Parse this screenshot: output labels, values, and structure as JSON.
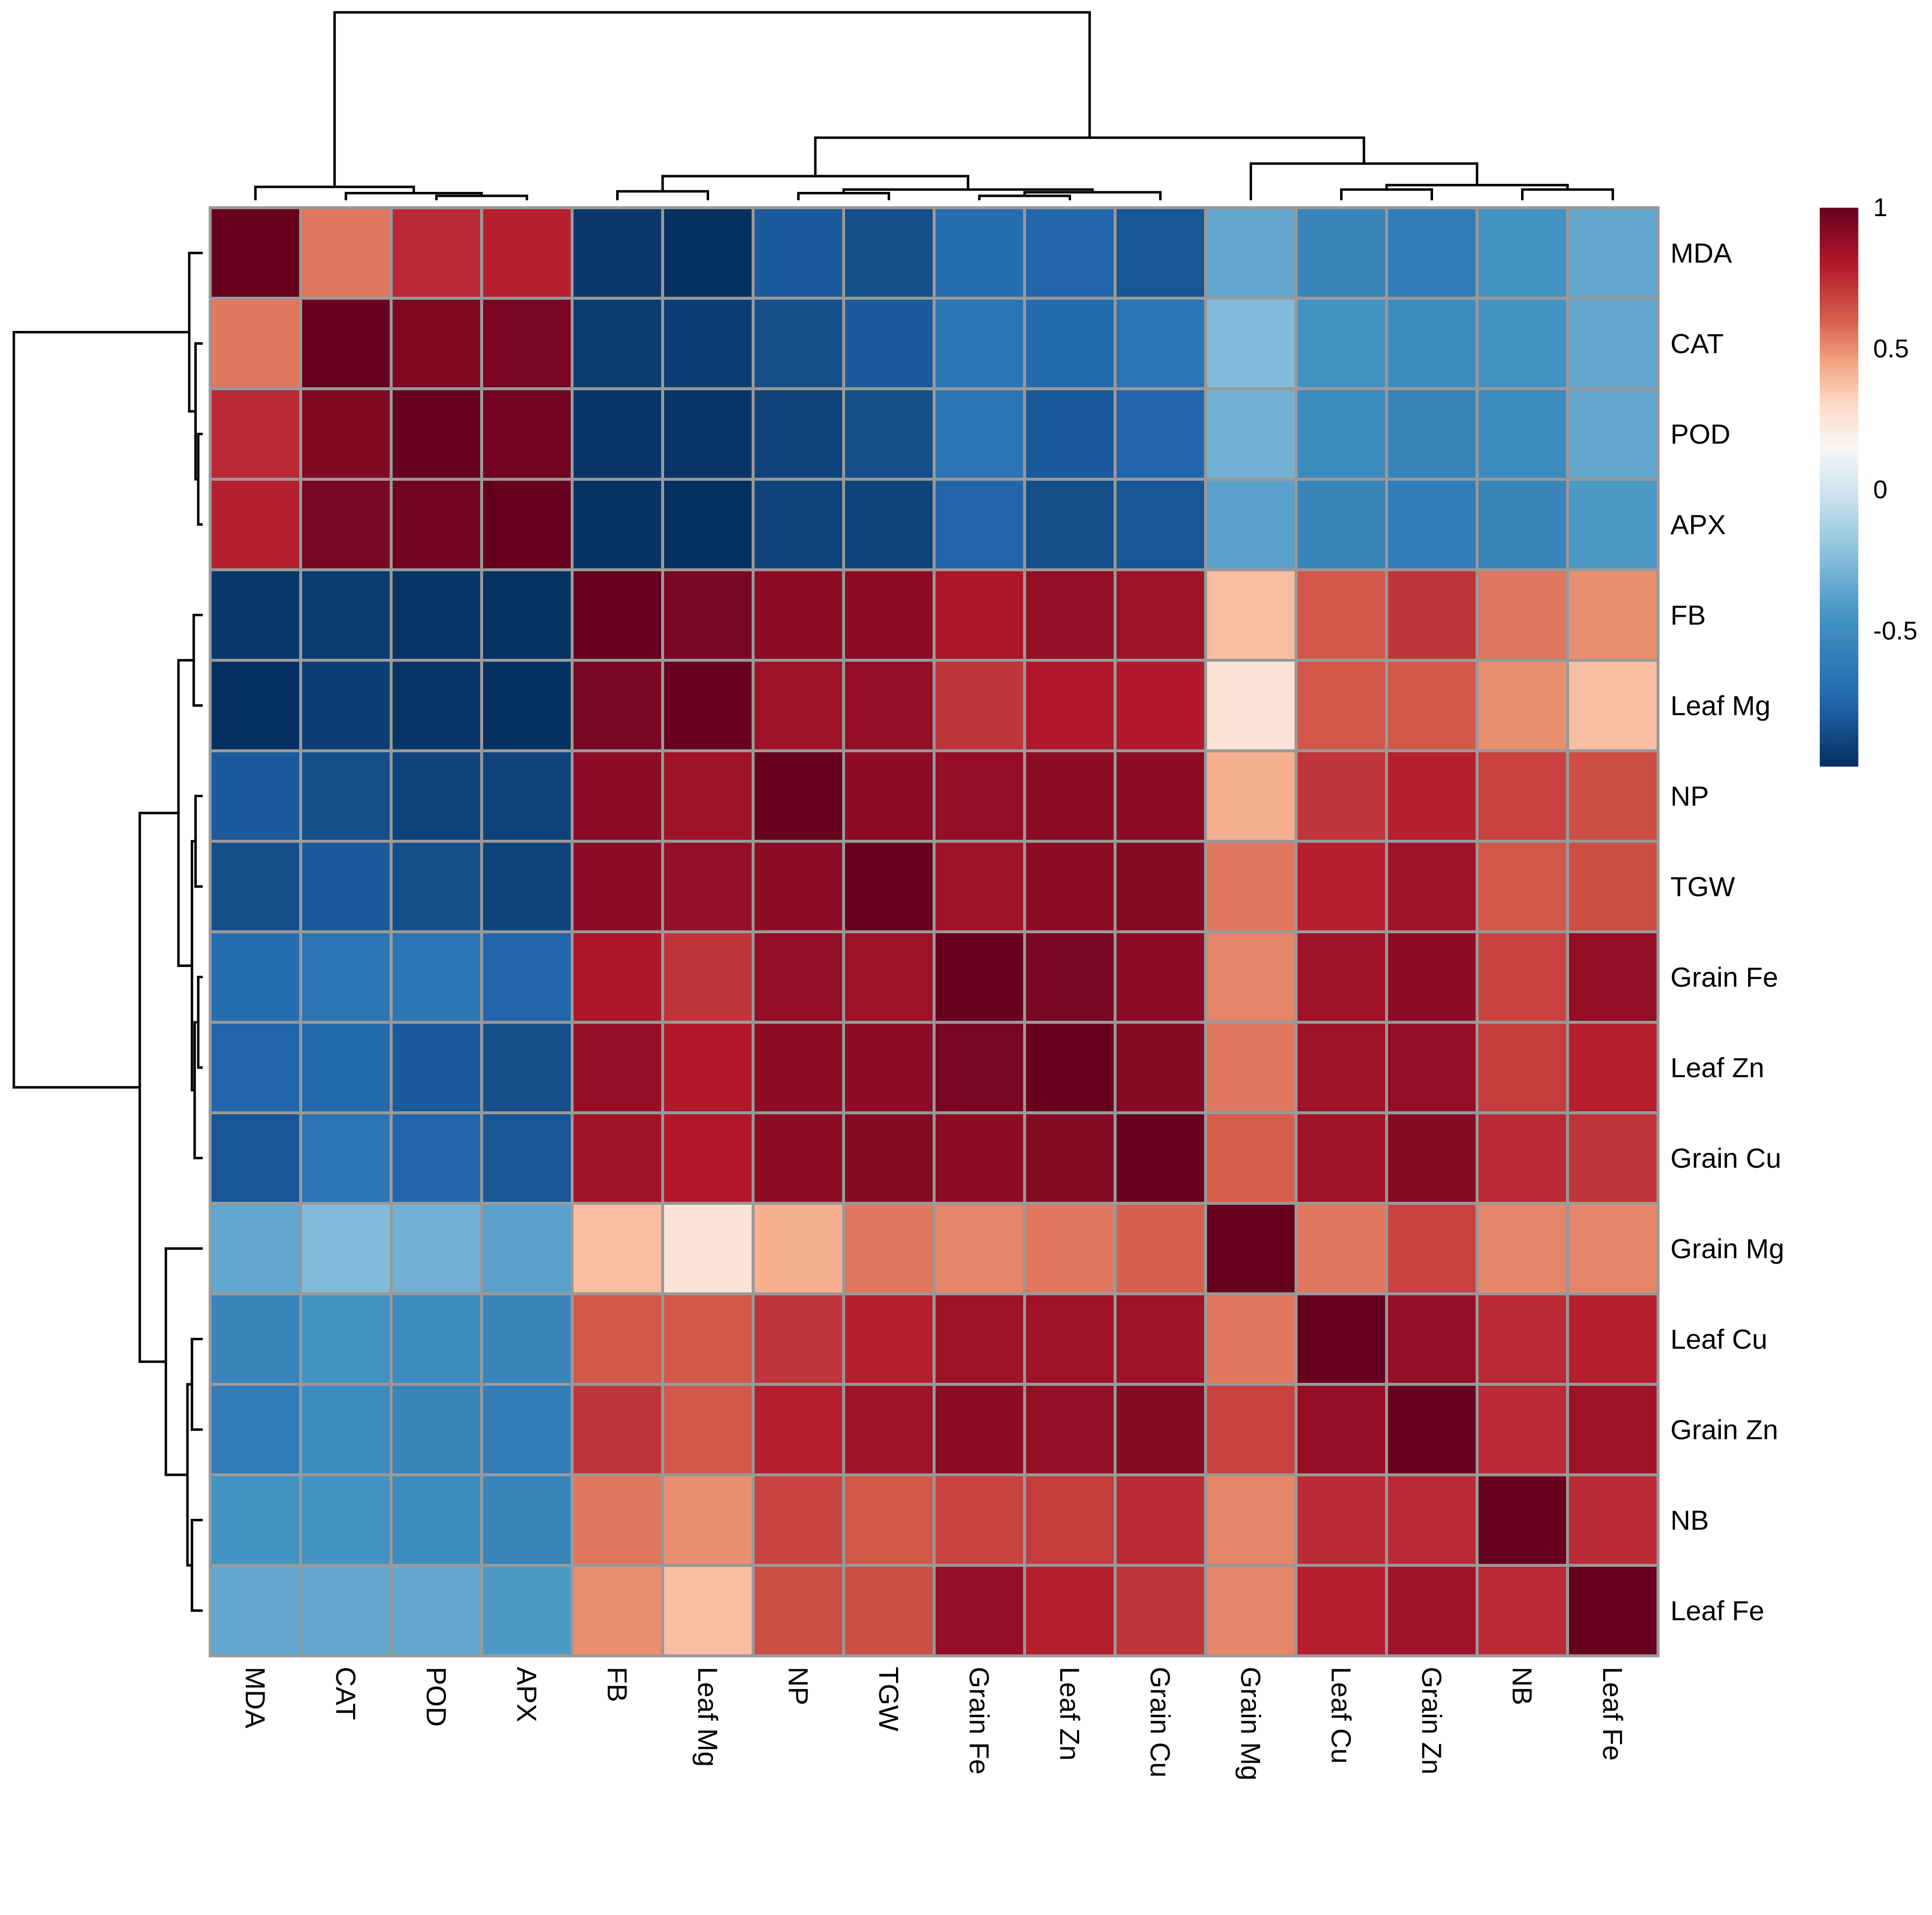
{
  "chart_data": {
    "type": "heatmap",
    "title": "",
    "row_labels": [
      "MDA",
      "CAT",
      "POD",
      "APX",
      "FB",
      "Leaf Mg",
      "NP",
      "TGW",
      "Grain Fe",
      "Leaf Zn",
      "Grain Cu",
      "Grain Mg",
      "Leaf Cu",
      "Grain Zn",
      "NB",
      "Leaf Fe"
    ],
    "col_labels": [
      "MDA",
      "CAT",
      "POD",
      "APX",
      "FB",
      "Leaf Mg",
      "NP",
      "TGW",
      "Grain Fe",
      "Leaf Zn",
      "Grain Cu",
      "Grain Mg",
      "Leaf Cu",
      "Grain Zn",
      "NB",
      "Leaf Fe"
    ],
    "values": [
      [
        1.0,
        0.55,
        0.75,
        0.78,
        -0.95,
        -0.98,
        -0.8,
        -0.85,
        -0.7,
        -0.75,
        -0.82,
        -0.35,
        -0.55,
        -0.6,
        -0.45,
        -0.35
      ],
      [
        0.55,
        1.0,
        0.93,
        0.95,
        -0.93,
        -0.92,
        -0.85,
        -0.8,
        -0.65,
        -0.72,
        -0.65,
        -0.25,
        -0.45,
        -0.5,
        -0.45,
        -0.35
      ],
      [
        0.75,
        0.93,
        1.0,
        0.97,
        -0.96,
        -0.96,
        -0.9,
        -0.85,
        -0.65,
        -0.8,
        -0.75,
        -0.3,
        -0.5,
        -0.55,
        -0.5,
        -0.35
      ],
      [
        0.78,
        0.95,
        0.97,
        1.0,
        -0.97,
        -0.98,
        -0.9,
        -0.9,
        -0.75,
        -0.85,
        -0.82,
        -0.38,
        -0.55,
        -0.6,
        -0.55,
        -0.42
      ],
      [
        -0.95,
        -0.93,
        -0.96,
        -0.97,
        1.0,
        0.95,
        0.9,
        0.9,
        0.82,
        0.88,
        0.85,
        0.38,
        0.62,
        0.72,
        0.55,
        0.5
      ],
      [
        -0.98,
        -0.92,
        -0.96,
        -0.98,
        0.95,
        1.0,
        0.85,
        0.88,
        0.72,
        0.8,
        0.8,
        0.25,
        0.62,
        0.62,
        0.5,
        0.38
      ],
      [
        -0.8,
        -0.85,
        -0.9,
        -0.9,
        0.9,
        0.85,
        1.0,
        0.9,
        0.88,
        0.9,
        0.9,
        0.42,
        0.72,
        0.78,
        0.68,
        0.65
      ],
      [
        -0.85,
        -0.8,
        -0.85,
        -0.9,
        0.9,
        0.88,
        0.9,
        1.0,
        0.85,
        0.9,
        0.92,
        0.55,
        0.78,
        0.85,
        0.62,
        0.65
      ],
      [
        -0.7,
        -0.65,
        -0.65,
        -0.75,
        0.82,
        0.72,
        0.88,
        0.85,
        1.0,
        0.95,
        0.9,
        0.52,
        0.85,
        0.9,
        0.68,
        0.88
      ],
      [
        -0.75,
        -0.72,
        -0.8,
        -0.85,
        0.88,
        0.8,
        0.9,
        0.9,
        0.95,
        1.0,
        0.92,
        0.55,
        0.85,
        0.88,
        0.7,
        0.78
      ],
      [
        -0.82,
        -0.65,
        -0.75,
        -0.82,
        0.85,
        0.8,
        0.9,
        0.92,
        0.9,
        0.92,
        1.0,
        0.6,
        0.85,
        0.92,
        0.75,
        0.72
      ],
      [
        -0.35,
        -0.25,
        -0.3,
        -0.38,
        0.38,
        0.25,
        0.42,
        0.55,
        0.52,
        0.55,
        0.6,
        1.0,
        0.55,
        0.68,
        0.52,
        0.52
      ],
      [
        -0.55,
        -0.45,
        -0.5,
        -0.55,
        0.62,
        0.62,
        0.72,
        0.78,
        0.85,
        0.85,
        0.85,
        0.55,
        1.0,
        0.88,
        0.75,
        0.78
      ],
      [
        -0.6,
        -0.5,
        -0.55,
        -0.6,
        0.72,
        0.62,
        0.78,
        0.85,
        0.9,
        0.88,
        0.92,
        0.68,
        0.88,
        1.0,
        0.75,
        0.85
      ],
      [
        -0.45,
        -0.45,
        -0.5,
        -0.55,
        0.55,
        0.5,
        0.68,
        0.62,
        0.68,
        0.7,
        0.75,
        0.52,
        0.75,
        0.75,
        1.0,
        0.75
      ],
      [
        -0.35,
        -0.35,
        -0.35,
        -0.42,
        0.5,
        0.38,
        0.65,
        0.65,
        0.88,
        0.78,
        0.72,
        0.52,
        0.78,
        0.85,
        0.75,
        1.0
      ]
    ],
    "color_scale": {
      "min": -0.98,
      "max": 1.0,
      "low_color": "#053061",
      "mid_color": "#F7F7F7",
      "high_color": "#67001F",
      "stops": [
        {
          "value": -0.98,
          "color": "#053061"
        },
        {
          "value": -0.75,
          "color": "#2166AC"
        },
        {
          "value": -0.45,
          "color": "#4393C3"
        },
        {
          "value": -0.2,
          "color": "#92C5DE"
        },
        {
          "value": 0.0,
          "color": "#D1E5F0"
        },
        {
          "value": 0.15,
          "color": "#F7F7F7"
        },
        {
          "value": 0.3,
          "color": "#FDDBC7"
        },
        {
          "value": 0.45,
          "color": "#F4A582"
        },
        {
          "value": 0.6,
          "color": "#D6604D"
        },
        {
          "value": 0.8,
          "color": "#B2182B"
        },
        {
          "value": 1.0,
          "color": "#67001F"
        }
      ]
    },
    "legend": {
      "position": "right",
      "ticks": [
        {
          "value": 1,
          "label": "1"
        },
        {
          "value": 0.5,
          "label": "0.5"
        },
        {
          "value": 0,
          "label": "0"
        },
        {
          "value": -0.5,
          "label": "-0.5"
        }
      ]
    },
    "dendrogram": {
      "order": [
        "MDA",
        "CAT",
        "POD",
        "APX",
        "FB",
        "Leaf Mg",
        "NP",
        "TGW",
        "Grain Fe",
        "Leaf Zn",
        "Grain Cu",
        "Grain Mg",
        "Leaf Cu",
        "Grain Zn",
        "NB",
        "Leaf Fe"
      ],
      "merges": [
        [
          2,
          3,
          0.05
        ],
        [
          1,
          -1,
          0.08
        ],
        [
          0,
          -2,
          0.15
        ],
        [
          8,
          9,
          0.05
        ],
        [
          10,
          -4,
          0.09
        ],
        [
          6,
          7,
          0.08
        ],
        [
          -6,
          -5,
          0.12
        ],
        [
          4,
          5,
          0.1
        ],
        [
          -8,
          -7,
          0.27
        ],
        [
          12,
          13,
          0.12
        ],
        [
          14,
          15,
          0.12
        ],
        [
          -10,
          -11,
          0.17
        ],
        [
          11,
          -12,
          0.41
        ],
        [
          -9,
          -13,
          0.7
        ],
        [
          -3,
          -14,
          2.1
        ]
      ],
      "max_height": 2.1
    }
  }
}
